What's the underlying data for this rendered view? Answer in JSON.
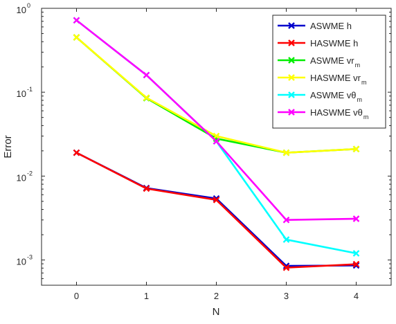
{
  "chart_data": {
    "type": "line",
    "title": "",
    "xlabel": "N",
    "ylabel": "Error",
    "x": [
      0,
      1,
      2,
      3,
      4
    ],
    "xlim": [
      -0.5,
      4.5
    ],
    "ylim": [
      0.0005,
      1
    ],
    "yscale": "log",
    "x_ticks": [
      "0",
      "1",
      "2",
      "3",
      "4"
    ],
    "y_ticks": [
      {
        "base": "10",
        "exp": "0",
        "value": 1
      },
      {
        "base": "10",
        "exp": "-1",
        "value": 0.1
      },
      {
        "base": "10",
        "exp": "-2",
        "value": 0.01
      },
      {
        "base": "10",
        "exp": "-3",
        "value": 0.001
      }
    ],
    "grid": false,
    "legend_position": "top-right",
    "marker": "x",
    "series": [
      {
        "name": "ASWME h",
        "label_main": "ASWME h",
        "label_sub": "",
        "color": "#0000cc",
        "values": [
          0.019,
          0.0072,
          0.0054,
          0.00085,
          0.00086
        ]
      },
      {
        "name": "HASWME h",
        "label_main": "HASWME h",
        "label_sub": "",
        "color": "#ff0000",
        "values": [
          0.019,
          0.0071,
          0.0052,
          0.00081,
          0.00089
        ]
      },
      {
        "name": "ASWME vr_m",
        "label_main": "ASWME vr",
        "label_sub": "m",
        "color": "#00ee00",
        "values": [
          0.45,
          0.085,
          0.028,
          0.019,
          0.021
        ]
      },
      {
        "name": "HASWME vr_m",
        "label_main": "HASWME vr",
        "label_sub": "m",
        "color": "#ffff00",
        "values": [
          0.45,
          0.086,
          0.03,
          0.019,
          0.021
        ]
      },
      {
        "name": "ASWME vθ_m",
        "label_main": "ASWME vθ",
        "label_sub": "m",
        "color": "#00ffff",
        "values": [
          0.72,
          0.16,
          0.026,
          0.00175,
          0.0012
        ]
      },
      {
        "name": "HASWME vθ_m",
        "label_main": "HASWME vθ",
        "label_sub": "m",
        "color": "#ff00ff",
        "values": [
          0.72,
          0.16,
          0.026,
          0.003,
          0.0031
        ]
      }
    ]
  }
}
